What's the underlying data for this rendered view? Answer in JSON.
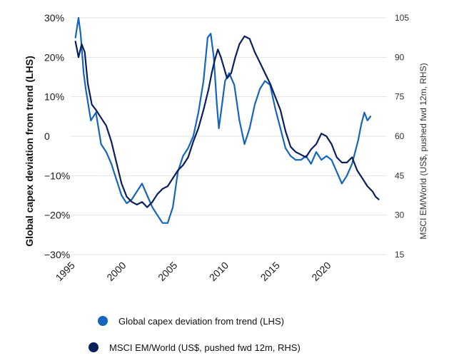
{
  "chart_data": {
    "type": "line",
    "ylabel_left": "Global capex deviation from trend (LHS)",
    "ylabel_right": "MSCI EM/World (US$, pushed fwd 12m, RHS)",
    "x_ticks": [
      "1995",
      "2000",
      "2005",
      "2010",
      "2015",
      "2020"
    ],
    "x_tick_values": [
      1995,
      2000,
      2005,
      2010,
      2015,
      2020
    ],
    "xlim": [
      1994.6,
      2025.4
    ],
    "ylim_left": [
      -30,
      30
    ],
    "ylim_right": [
      15,
      105
    ],
    "y_ticks_left": [
      "30%",
      "20%",
      "10%",
      "0",
      "−10%",
      "−20%",
      "−30%"
    ],
    "y_tick_values_left": [
      30,
      20,
      10,
      0,
      -10,
      -20,
      -30
    ],
    "y_ticks_right": [
      "105",
      "90",
      "75",
      "60",
      "45",
      "30",
      "15"
    ],
    "y_tick_values_right": [
      105,
      90,
      75,
      60,
      45,
      30,
      15
    ],
    "grid": "horizontal",
    "legend_position": "bottom",
    "series": [
      {
        "name": "Global capex deviation from trend (LHS)",
        "axis": "left",
        "color": "#1565c0",
        "x": [
          1995.0,
          1995.3,
          1995.5,
          1995.8,
          1996.0,
          1996.5,
          1997.0,
          1997.5,
          1998.0,
          1998.5,
          1999.0,
          1999.5,
          2000.0,
          2000.5,
          2001.0,
          2001.5,
          2002.0,
          2002.5,
          2003.0,
          2003.5,
          2004.0,
          2004.5,
          2005.0,
          2005.5,
          2006.0,
          2006.5,
          2007.0,
          2007.5,
          2007.9,
          2008.2,
          2008.5,
          2008.8,
          2009.0,
          2009.3,
          2009.6,
          2010.0,
          2010.5,
          2011.0,
          2011.5,
          2012.0,
          2012.5,
          2013.0,
          2013.5,
          2014.0,
          2014.5,
          2015.0,
          2015.5,
          2016.0,
          2016.5,
          2017.0,
          2017.5,
          2018.0,
          2018.5,
          2019.0,
          2019.5,
          2020.0,
          2020.5,
          2021.0,
          2021.5,
          2022.0,
          2022.3,
          2022.6,
          2022.9,
          2023.2,
          2023.5,
          2023.8
        ],
        "y": [
          25,
          30,
          26,
          16,
          12,
          4,
          6,
          -2,
          -4,
          -7,
          -11,
          -15,
          -17,
          -16,
          -14,
          -12,
          -15,
          -18,
          -20,
          -22,
          -22,
          -18,
          -9,
          -5,
          -3,
          0,
          6,
          14,
          25,
          26,
          20,
          8,
          2,
          8,
          14,
          16,
          13,
          4,
          -2,
          2,
          8,
          12,
          14,
          13,
          7,
          2,
          -3,
          -5,
          -6,
          -6,
          -5,
          -7,
          -4,
          -6,
          -5,
          -6,
          -9,
          -12,
          -10,
          -7,
          -4,
          -1,
          3,
          6,
          4,
          5
        ]
      },
      {
        "name": "MSCI EM/World (US$, pushed fwd 12m, RHS)",
        "axis": "right",
        "color": "#0a1f5c",
        "x": [
          1995.0,
          1995.3,
          1995.6,
          1995.9,
          1996.2,
          1996.6,
          1997.0,
          1997.5,
          1998.0,
          1998.5,
          1999.0,
          1999.5,
          2000.0,
          2000.5,
          2001.0,
          2001.5,
          2002.0,
          2002.5,
          2003.0,
          2003.5,
          2004.0,
          2004.5,
          2005.0,
          2005.5,
          2006.0,
          2006.5,
          2007.0,
          2007.5,
          2008.0,
          2008.3,
          2008.6,
          2008.9,
          2009.2,
          2009.5,
          2009.8,
          2010.2,
          2010.6,
          2011.0,
          2011.5,
          2012.0,
          2012.5,
          2013.0,
          2013.5,
          2014.0,
          2014.5,
          2015.0,
          2015.5,
          2016.0,
          2016.5,
          2017.0,
          2017.5,
          2018.0,
          2018.5,
          2019.0,
          2019.5,
          2020.0,
          2020.5,
          2021.0,
          2021.5,
          2022.0,
          2022.5,
          2023.0,
          2023.5,
          2024.0,
          2024.3,
          2024.6
        ],
        "y": [
          96,
          90,
          95,
          92,
          80,
          72,
          70,
          67,
          64,
          58,
          50,
          42,
          37,
          35,
          34,
          35,
          33,
          35,
          38,
          40,
          41,
          44,
          47,
          49,
          52,
          58,
          63,
          70,
          78,
          84,
          89,
          93,
          90,
          86,
          82,
          84,
          90,
          95,
          98,
          97,
          92,
          88,
          84,
          80,
          75,
          70,
          62,
          56,
          54,
          53,
          52,
          55,
          57,
          61,
          60,
          57,
          52,
          50,
          50,
          52,
          47,
          44,
          41,
          39,
          37,
          36
        ]
      }
    ]
  }
}
